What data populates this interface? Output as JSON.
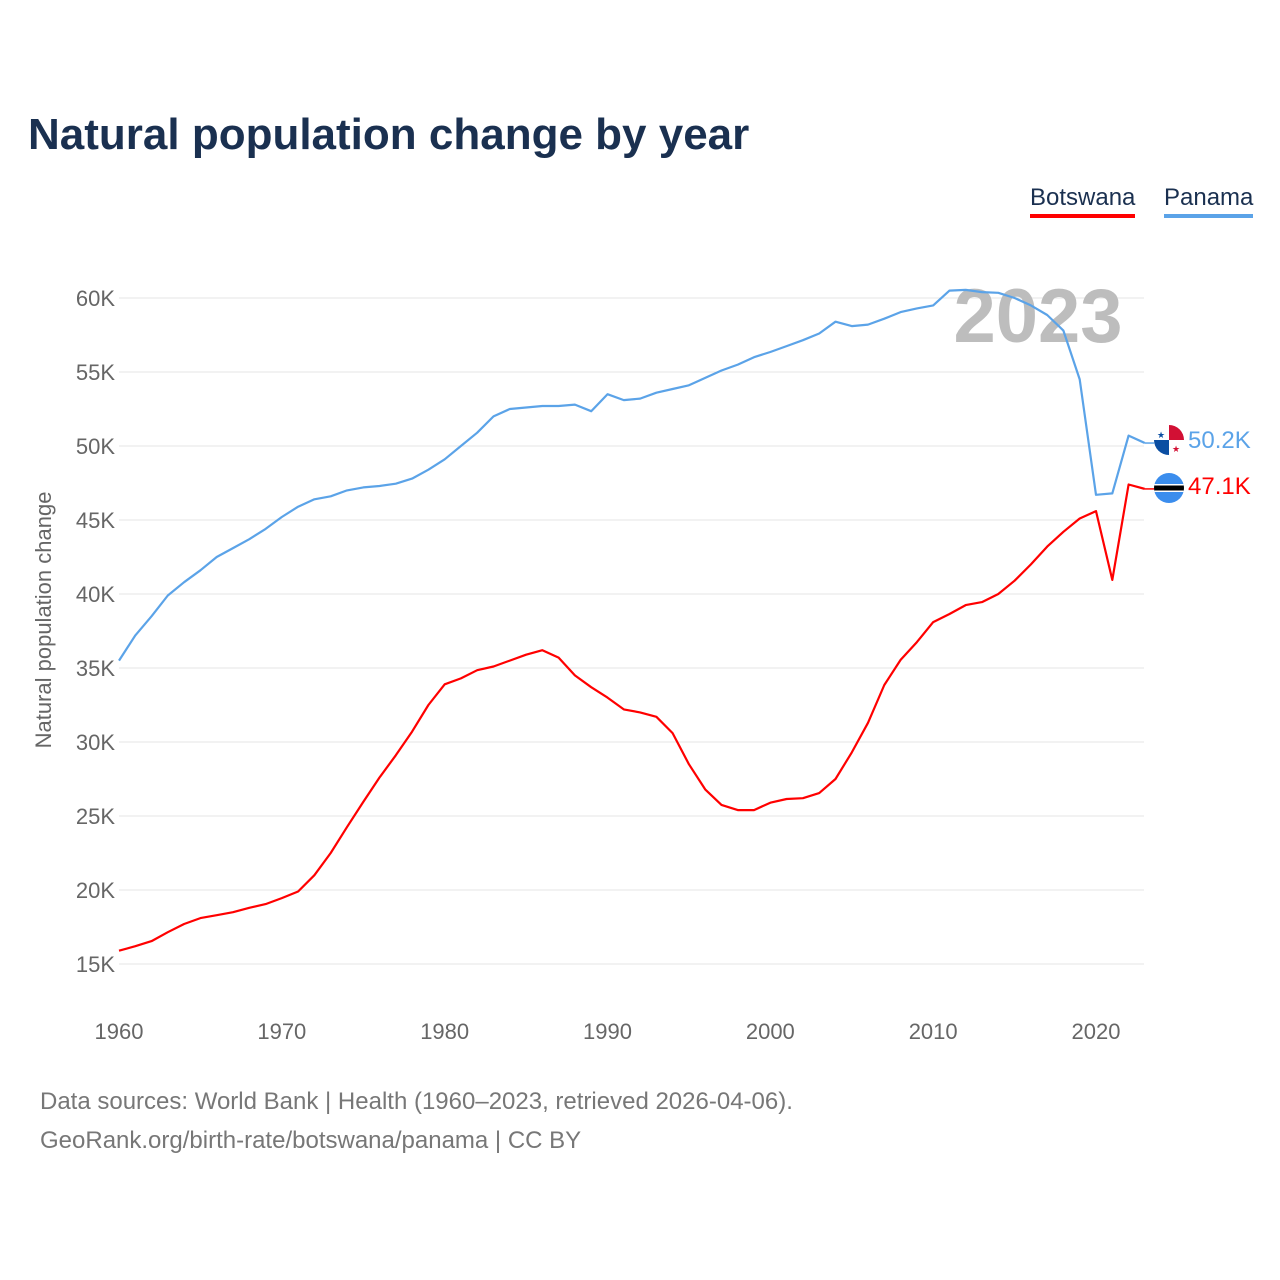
{
  "title": "Natural population change by year",
  "legend": [
    {
      "name": "Botswana",
      "color": "#ff0000"
    },
    {
      "name": "Panama",
      "color": "#5ba3e8"
    }
  ],
  "year_watermark": "2023",
  "footer": {
    "line1": "Data sources: World Bank | Health (1960–2023, retrieved 2026-04-06).",
    "line2": "GeoRank.org/birth-rate/botswana/panama | CC BY"
  },
  "chart_data": {
    "type": "line",
    "title": "Natural population change by year",
    "xlabel": "",
    "ylabel": "Natural population change",
    "xlim": [
      1960,
      2023
    ],
    "ylim": [
      15000,
      60000
    ],
    "x_ticks": [
      "1960",
      "1970",
      "1980",
      "1990",
      "2000",
      "2010",
      "2020"
    ],
    "y_ticks": [
      "15K",
      "20K",
      "25K",
      "30K",
      "35K",
      "40K",
      "45K",
      "50K",
      "55K",
      "60K"
    ],
    "grid": true,
    "legend_position": "top-right",
    "x_start": 1960,
    "series": [
      {
        "name": "Botswana",
        "color": "#ff0000",
        "end_label": "47.1K",
        "values": [
          15900,
          16200,
          16550,
          17150,
          17700,
          18100,
          18300,
          18500,
          18800,
          19050,
          19450,
          19900,
          21000,
          22500,
          24250,
          25950,
          27600,
          29100,
          30700,
          32500,
          33900,
          34300,
          34850,
          35100,
          35500,
          35900,
          36200,
          35700,
          34500,
          33700,
          33000,
          32200,
          32000,
          31700,
          30600,
          28500,
          26800,
          25750,
          25400,
          25400,
          25900,
          26150,
          26200,
          26550,
          27500,
          29300,
          31300,
          33850,
          35550,
          36750,
          38100,
          38650,
          39250,
          39450,
          40000,
          40900,
          42000,
          43200,
          44200,
          45100,
          45600,
          40950,
          47400,
          47100
        ]
      },
      {
        "name": "Panama",
        "color": "#5ba3e8",
        "end_label": "50.2K",
        "values": [
          35500,
          37200,
          38500,
          39900,
          40800,
          41600,
          42500,
          43100,
          43700,
          44400,
          45200,
          45900,
          46400,
          46600,
          47000,
          47200,
          47300,
          47450,
          47800,
          48400,
          49100,
          50000,
          50900,
          52000,
          52500,
          52600,
          52700,
          52700,
          52800,
          52350,
          53500,
          53100,
          53200,
          53600,
          53850,
          54100,
          54600,
          55100,
          55500,
          56000,
          56350,
          56750,
          57150,
          57600,
          58400,
          58100,
          58200,
          58600,
          59050,
          59300,
          59500,
          60500,
          60550,
          60400,
          60350,
          60000,
          59500,
          58850,
          57800,
          54500,
          46700,
          46800,
          50700,
          50200
        ]
      }
    ]
  }
}
